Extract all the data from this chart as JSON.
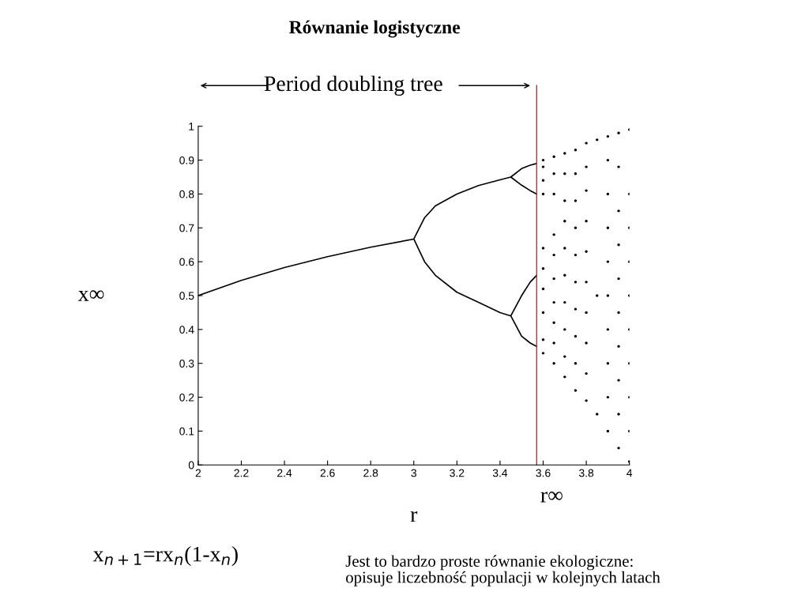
{
  "chart_data": {
    "type": "scatter",
    "title": "Równanie logistyczne",
    "xlabel": "r",
    "ylabel": "x∞",
    "annotations": [
      "Period doubling tree",
      "x$_{n+1}$=rx$_{n}$(1-x$_{n}$)",
      "Jest to bardzo proste równanie ekologiczne:\nopisuje liczebność populacji w kolejnych latach"
    ],
    "xlim": [
      2,
      4
    ],
    "ylim": [
      0,
      1
    ],
    "xticks": [
      2,
      2.2,
      2.4,
      2.6,
      2.8,
      3,
      3.2,
      3.4,
      3.6,
      3.8,
      4
    ],
    "yticks": [
      0,
      0.1,
      0.2,
      0.3,
      0.4,
      0.5,
      0.6,
      0.7,
      0.8,
      0.9,
      1
    ],
    "grid": false,
    "ref_lines": [
      {
        "axis": "x",
        "value": 3.57,
        "label": "r∞",
        "color": "#d62728"
      }
    ],
    "series": [
      {
        "type": "line",
        "color": "#000000",
        "x": [
          2,
          2.2,
          2.4,
          2.6,
          2.8,
          3.0,
          3.05,
          3.1,
          3.2,
          3.3,
          3.4,
          3.45,
          3.5,
          3.54,
          3.57,
          3.54,
          3.5,
          3.45,
          3.5,
          3.54,
          3.57,
          3.54,
          3.5,
          3.45,
          3.4,
          3.3,
          3.2,
          3.1,
          3.05,
          3.0,
          3.05,
          3.1,
          3.2,
          3.3,
          3.4,
          3.45,
          3.5,
          3.54,
          3.57,
          3.54,
          3.5,
          3.45,
          3.5,
          3.54,
          3.57
        ],
        "values": [
          0.5,
          0.545,
          0.583,
          0.615,
          0.643,
          0.667,
          0.73,
          0.765,
          0.8,
          0.825,
          0.842,
          0.85,
          0.875,
          0.885,
          0.89,
          0.885,
          0.875,
          0.85,
          0.826,
          0.81,
          0.8,
          0.81,
          0.826,
          0.85,
          0.842,
          0.825,
          0.8,
          0.765,
          0.73,
          0.667,
          0.6,
          0.56,
          0.51,
          0.48,
          0.45,
          0.44,
          0.5,
          0.54,
          0.56,
          0.54,
          0.5,
          0.44,
          0.38,
          0.36,
          0.35
        ]
      },
      {
        "color": "#000000",
        "marker": "circle",
        "x": [
          3.6,
          3.6,
          3.6,
          3.6,
          3.6,
          3.6,
          3.6,
          3.6,
          3.6,
          3.6,
          3.65,
          3.65,
          3.65,
          3.65,
          3.65,
          3.65,
          3.65,
          3.65,
          3.65,
          3.65,
          3.7,
          3.7,
          3.7,
          3.7,
          3.7,
          3.7,
          3.7,
          3.7,
          3.7,
          3.7,
          3.75,
          3.75,
          3.75,
          3.75,
          3.75,
          3.75,
          3.75,
          3.75,
          3.75,
          3.75,
          3.8,
          3.8,
          3.8,
          3.8,
          3.8,
          3.8,
          3.8,
          3.8,
          3.8,
          3.8,
          3.85,
          3.85,
          3.85,
          3.9,
          3.9,
          3.9,
          3.9,
          3.9,
          3.9,
          3.9,
          3.9,
          3.9,
          3.9,
          3.95,
          3.95,
          3.95,
          3.95,
          3.95,
          3.95,
          3.95,
          3.95,
          3.95,
          3.95,
          4.0,
          4.0,
          4.0,
          4.0,
          4.0,
          4.0,
          4.0,
          4.0,
          4.0,
          4.0
        ],
        "values": [
          0.33,
          0.37,
          0.45,
          0.52,
          0.58,
          0.64,
          0.8,
          0.84,
          0.88,
          0.9,
          0.3,
          0.36,
          0.42,
          0.48,
          0.55,
          0.62,
          0.68,
          0.8,
          0.86,
          0.91,
          0.26,
          0.32,
          0.4,
          0.48,
          0.56,
          0.64,
          0.72,
          0.78,
          0.86,
          0.92,
          0.22,
          0.3,
          0.38,
          0.46,
          0.54,
          0.62,
          0.7,
          0.78,
          0.86,
          0.93,
          0.19,
          0.27,
          0.36,
          0.45,
          0.54,
          0.63,
          0.72,
          0.81,
          0.88,
          0.95,
          0.15,
          0.5,
          0.96,
          0.1,
          0.2,
          0.3,
          0.4,
          0.5,
          0.6,
          0.7,
          0.8,
          0.9,
          0.97,
          0.05,
          0.15,
          0.25,
          0.35,
          0.45,
          0.55,
          0.65,
          0.75,
          0.88,
          0.98,
          0.01,
          0.1,
          0.2,
          0.3,
          0.4,
          0.5,
          0.6,
          0.7,
          0.8,
          0.99
        ]
      }
    ]
  }
}
